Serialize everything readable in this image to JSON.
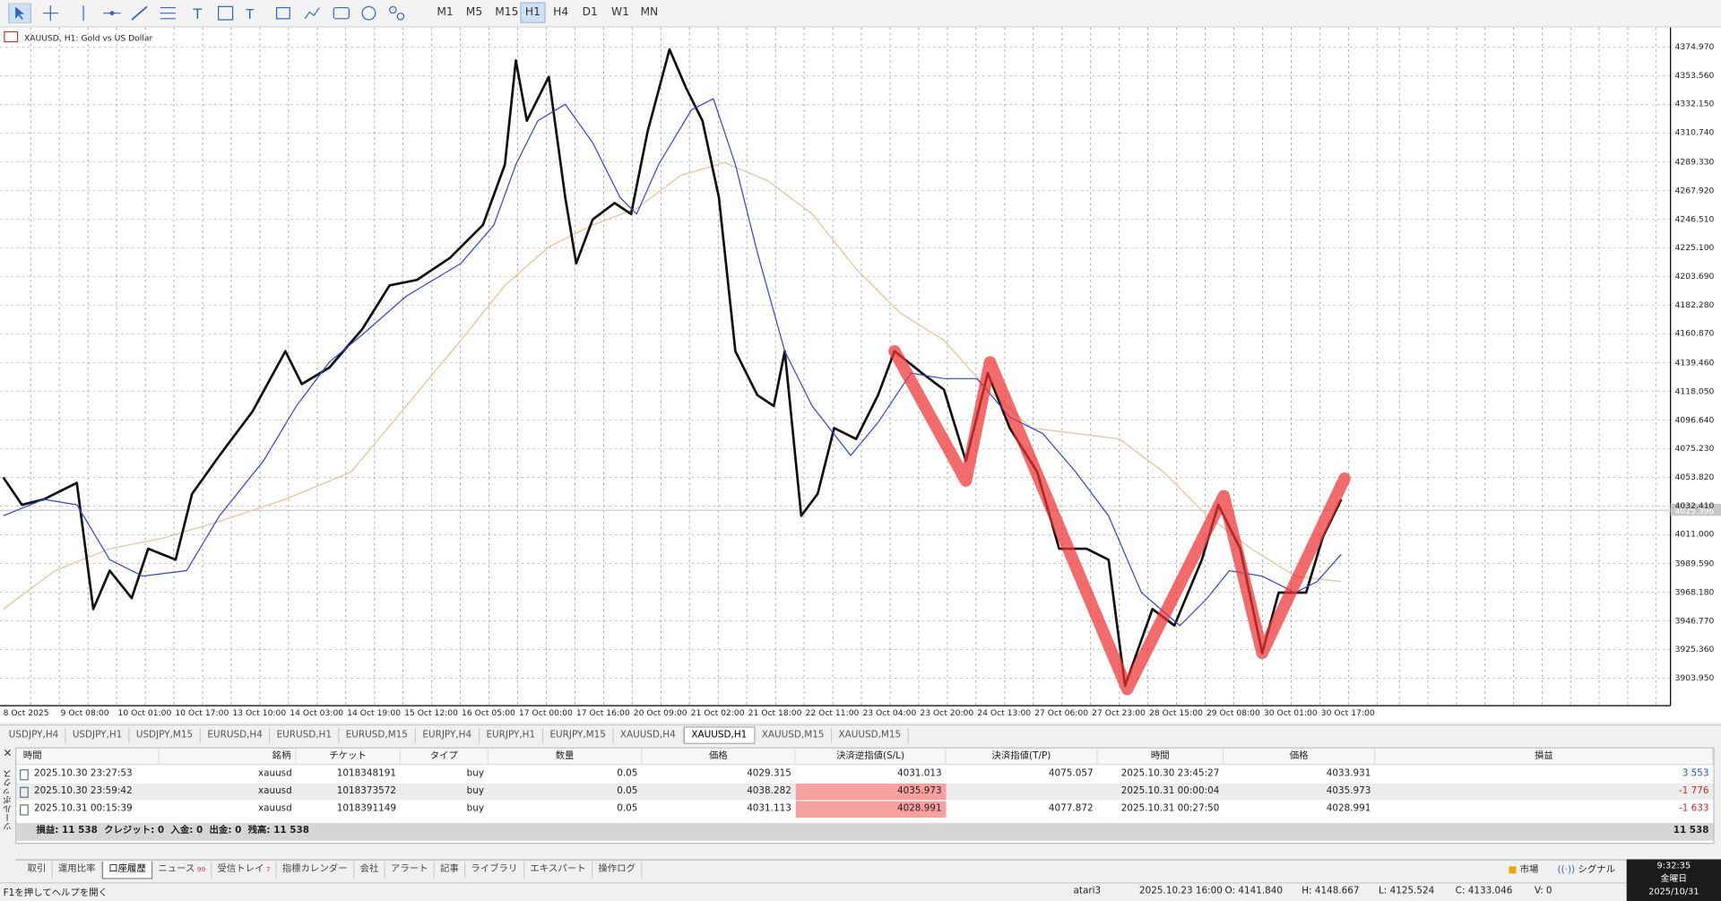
{
  "toolbar": {
    "timeframes": [
      "M1",
      "M5",
      "M15",
      "H1",
      "H4",
      "D1",
      "W1",
      "MN"
    ],
    "active": "H1"
  },
  "chart": {
    "title": "XAUUSD, H1:  Gold vs US Dollar",
    "price_labels": [
      "4374.970",
      "4353.560",
      "4332.150",
      "4310.740",
      "4289.330",
      "4267.920",
      "4246.510",
      "4225.100",
      "4203.690",
      "4182.280",
      "4160.870",
      "4139.460",
      "4118.050",
      "4096.640",
      "4075.230",
      "4053.820",
      "4032.410",
      "4011.000",
      "3989.590",
      "3968.180",
      "3946.770",
      "3925.360",
      "3903.950"
    ],
    "current_price": "4025.396",
    "time_labels": [
      "8 Oct 2025",
      "9 Oct 08:00",
      "10 Oct 01:00",
      "10 Oct 17:00",
      "13 Oct 10:00",
      "14 Oct 03:00",
      "14 Oct 19:00",
      "15 Oct 12:00",
      "16 Oct 05:00",
      "17 Oct 00:00",
      "17 Oct 16:00",
      "20 Oct 09:00",
      "21 Oct 02:00",
      "21 Oct 18:00",
      "22 Oct 11:00",
      "23 Oct 04:00",
      "23 Oct 20:00",
      "24 Oct 13:00",
      "27 Oct 06:00",
      "27 Oct 23:00",
      "28 Oct 15:00",
      "29 Oct 08:00",
      "30 Oct 01:00",
      "30 Oct 17:00"
    ]
  },
  "chart_tabs": {
    "tabs": [
      "USDJPY,H4",
      "USDJPY,H1",
      "USDJPY,M15",
      "EURUSD,H4",
      "EURUSD,H1",
      "EURUSD,M15",
      "EURJPY,H4",
      "EURJPY,H1",
      "EURJPY,M15",
      "XAUUSD,H4",
      "XAUUSD,H1",
      "XAUUSD,M15",
      "XAUUSD,M15"
    ],
    "active": 10
  },
  "terminal": {
    "side_label": "ツールボックス",
    "columns": [
      "時間",
      "銘柄",
      "チケット",
      "タイプ",
      "数量",
      "価格",
      "決済逆指値(S/L)",
      "決済指値(T/P)",
      "時間",
      "価格",
      "損益"
    ],
    "rows": [
      [
        "2025.10.30 23:27:53",
        "xauusd",
        "1018348191",
        "buy",
        "0.05",
        "4029.315",
        "4031.013",
        "4075.057",
        "2025.10.30 23:45:27",
        "4033.931",
        "3 553"
      ],
      [
        "2025.10.30 23:59:42",
        "xauusd",
        "1018373572",
        "buy",
        "0.05",
        "4038.282",
        "4035.973",
        null,
        "2025.10.31 00:00:04",
        "4035.973",
        "-1 776"
      ],
      [
        "2025.10.31 00:15:39",
        "xauusd",
        "1018391149",
        "buy",
        "0.05",
        "4031.113",
        "4028.991",
        "4077.872",
        "2025.10.31 00:27:50",
        "4028.991",
        "-1 633"
      ]
    ],
    "summary": "損益: 11 538  クレジット: 0  入金: 0  出金: 0  残高: 11 538",
    "summary_total": "11 538"
  },
  "bottom_tabs": {
    "tabs": [
      {
        "label": "取引"
      },
      {
        "label": "運用比率"
      },
      {
        "label": "口座履歴"
      },
      {
        "label": "ニュース",
        "badge": "99"
      },
      {
        "label": "受信トレイ",
        "badge": "7"
      },
      {
        "label": "指標カレンダー"
      },
      {
        "label": "会社"
      },
      {
        "label": "アラート"
      },
      {
        "label": "記事"
      },
      {
        "label": "ライブラリ"
      },
      {
        "label": "エキスパート"
      },
      {
        "label": "操作ログ"
      }
    ],
    "active": 2,
    "market": "市場",
    "signal": "シグナル"
  },
  "clock": {
    "time": "9:32:35",
    "weekday": "金曜日",
    "date": "2025/10/31"
  },
  "status_bar": {
    "help": "F1を押してヘルプを開く",
    "profile": "atari3",
    "time": "2025.10.23 16:00",
    "open": "O: 4141.840",
    "high": "H: 4148.667",
    "low": "L: 4125.524",
    "close": "C: 4133.046",
    "volume": "V: 0"
  }
}
